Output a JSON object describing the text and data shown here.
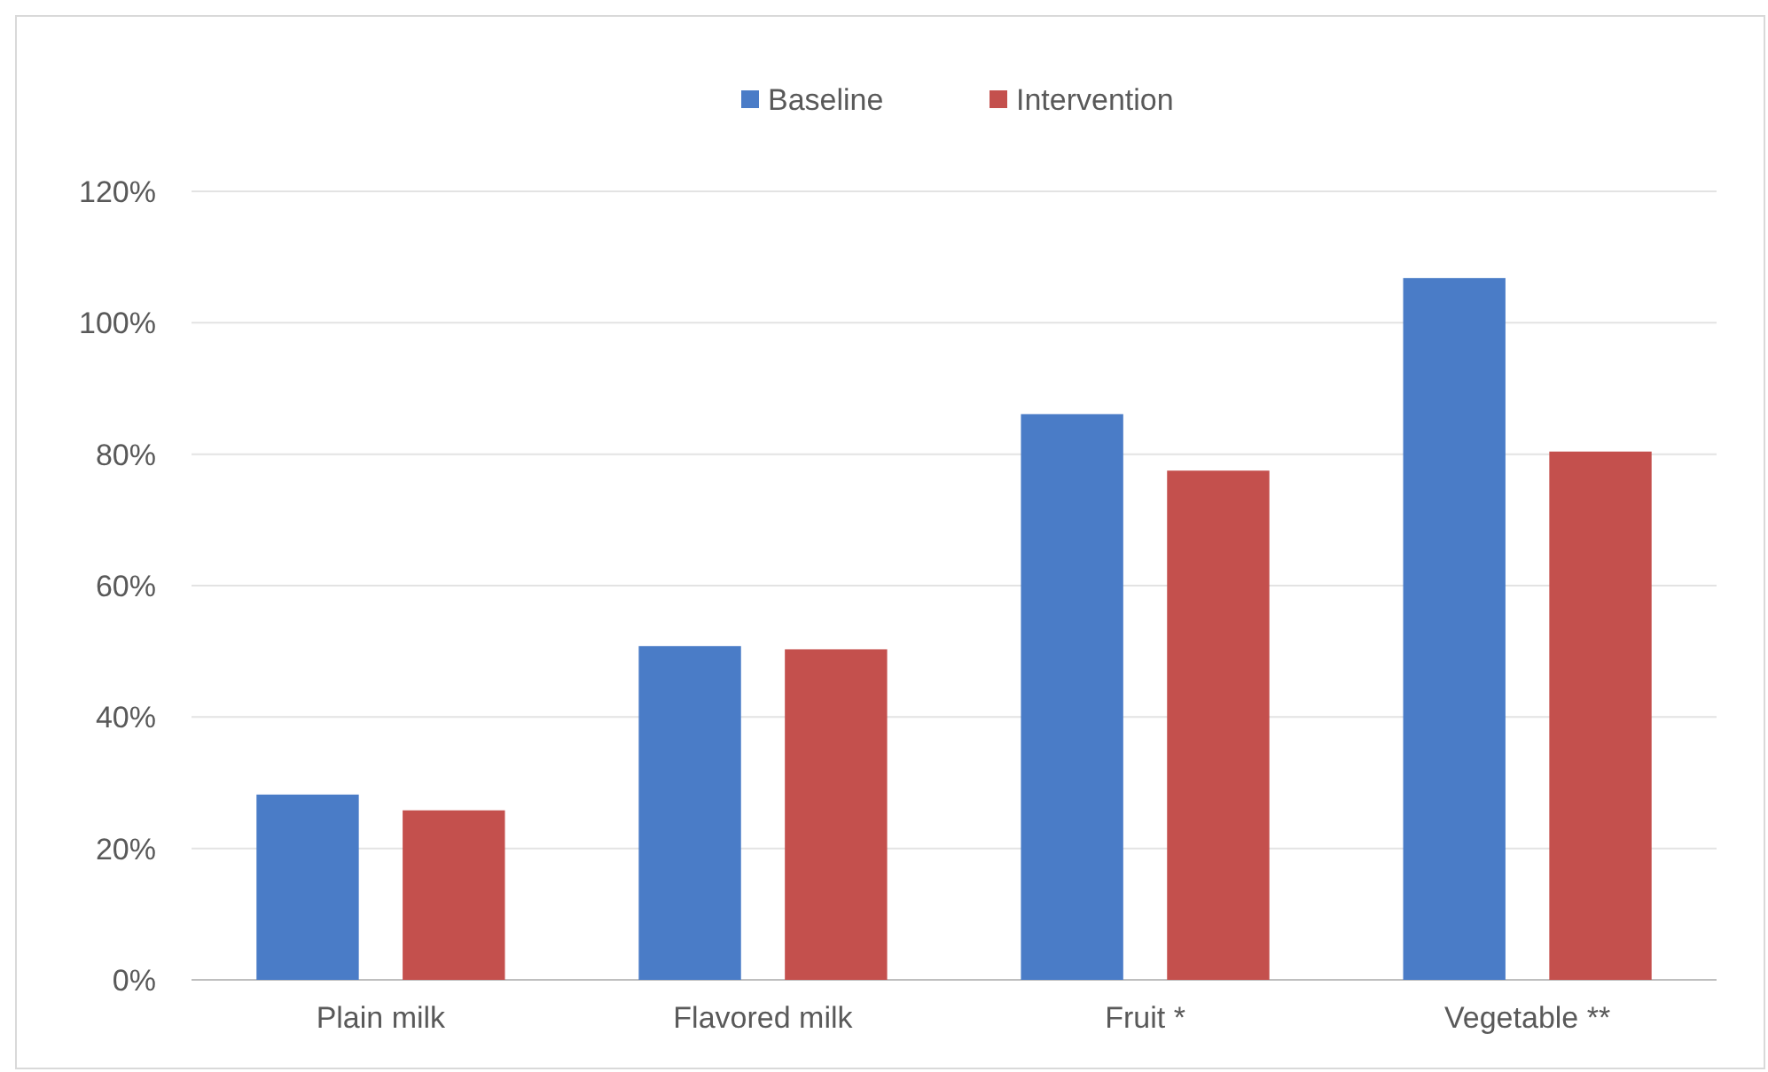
{
  "chart_data": {
    "type": "bar",
    "categories": [
      "Plain milk",
      "Flavored milk",
      "Fruit *",
      "Vegetable **"
    ],
    "series": [
      {
        "name": "Baseline",
        "color": "#4a7cc7",
        "values": [
          0.282,
          0.508,
          0.861,
          1.068
        ]
      },
      {
        "name": "Intervention",
        "color": "#c4504d",
        "values": [
          0.258,
          0.503,
          0.775,
          0.804
        ]
      }
    ],
    "ylim": [
      0,
      1.2
    ],
    "yticks": [
      {
        "value": 0,
        "label": "0%"
      },
      {
        "value": 0.2,
        "label": "20%"
      },
      {
        "value": 0.4,
        "label": "40%"
      },
      {
        "value": 0.6,
        "label": "60%"
      },
      {
        "value": 0.8,
        "label": "80%"
      },
      {
        "value": 1.0,
        "label": "100%"
      },
      {
        "value": 1.2,
        "label": "120%"
      }
    ],
    "grid": "y",
    "legend": "top"
  }
}
